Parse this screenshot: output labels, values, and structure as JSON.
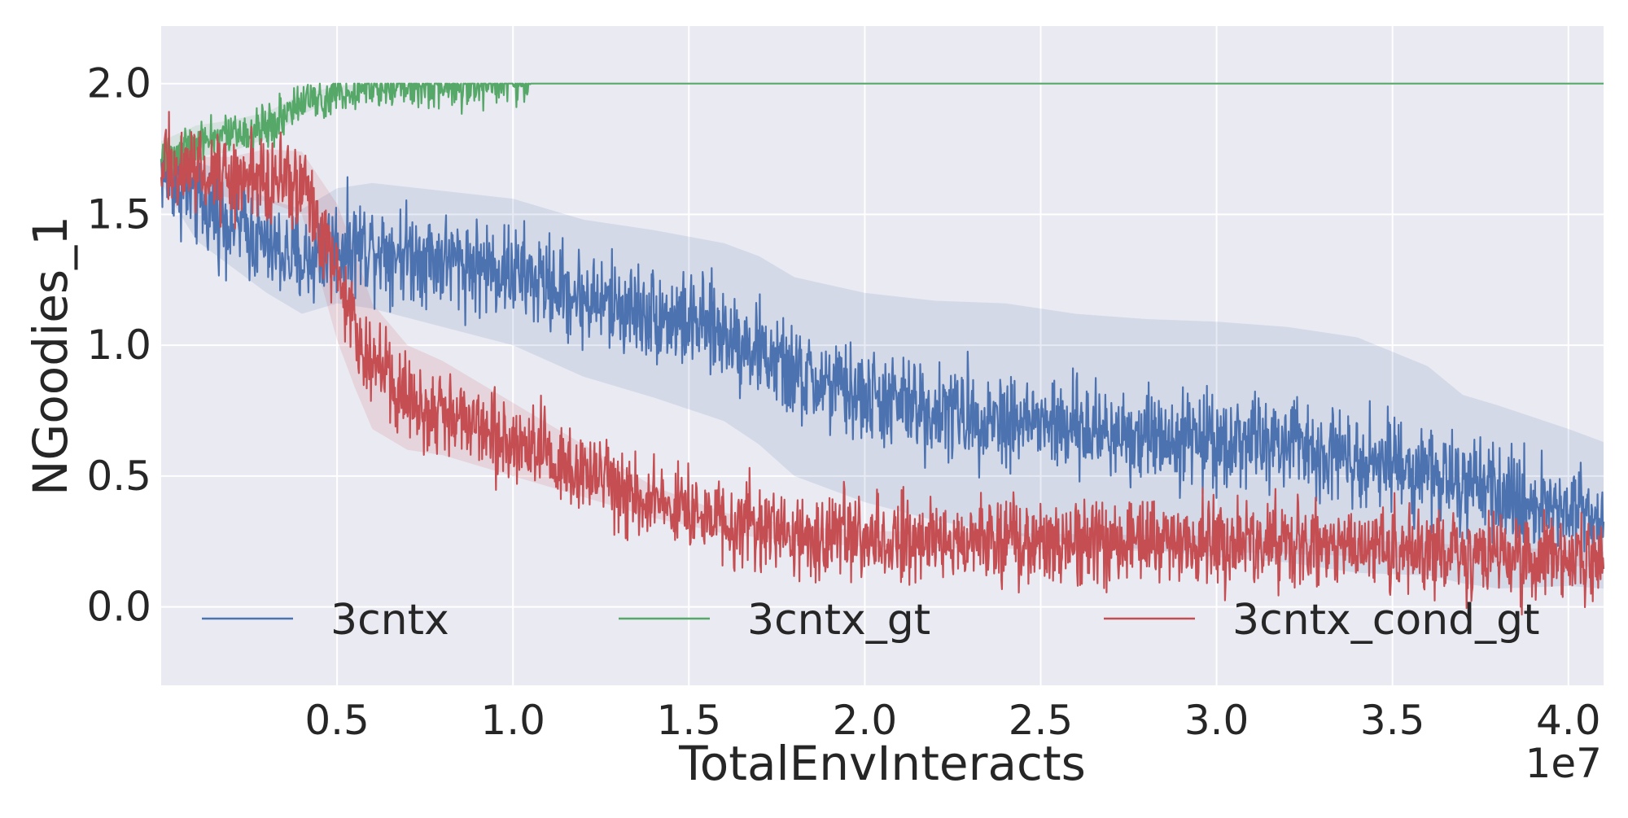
{
  "chart_data": {
    "type": "line",
    "xlabel": "TotalEnvInteracts",
    "ylabel": "NGoodies_1",
    "x_offset_label": "1e7",
    "xlim": [
      0.0,
      4.1
    ],
    "ylim": [
      -0.3,
      2.22
    ],
    "x_scale_factor": 10000000,
    "grid": true,
    "legend_placement": "lower-center",
    "legend_layout": "horizontal",
    "x_ticks": [
      {
        "value": 0.5,
        "label": "0.5"
      },
      {
        "value": 1.0,
        "label": "1.0"
      },
      {
        "value": 1.5,
        "label": "1.5"
      },
      {
        "value": 2.0,
        "label": "2.0"
      },
      {
        "value": 2.5,
        "label": "2.5"
      },
      {
        "value": 3.0,
        "label": "3.0"
      },
      {
        "value": 3.5,
        "label": "3.5"
      },
      {
        "value": 4.0,
        "label": "4.0"
      }
    ],
    "y_ticks": [
      {
        "value": 0.0,
        "label": "0.0"
      },
      {
        "value": 0.5,
        "label": "0.5"
      },
      {
        "value": 1.0,
        "label": "1.0"
      },
      {
        "value": 1.5,
        "label": "1.5"
      },
      {
        "value": 2.0,
        "label": "2.0"
      }
    ],
    "series": [
      {
        "name": "3cntx",
        "color": "#4c72b0",
        "x": [
          0.0,
          0.1,
          0.2,
          0.3,
          0.4,
          0.5,
          0.6,
          0.8,
          1.0,
          1.2,
          1.4,
          1.6,
          1.7,
          1.8,
          2.0,
          2.2,
          2.4,
          2.6,
          2.8,
          3.0,
          3.2,
          3.4,
          3.6,
          3.7,
          3.8,
          4.0,
          4.1
        ],
        "y": [
          1.68,
          1.55,
          1.48,
          1.38,
          1.32,
          1.38,
          1.38,
          1.33,
          1.28,
          1.18,
          1.12,
          1.05,
          0.98,
          0.88,
          0.8,
          0.75,
          0.72,
          0.68,
          0.66,
          0.64,
          0.62,
          0.58,
          0.52,
          0.45,
          0.42,
          0.38,
          0.35
        ],
        "band": [
          0.06,
          0.15,
          0.18,
          0.18,
          0.2,
          0.22,
          0.24,
          0.26,
          0.28,
          0.3,
          0.32,
          0.34,
          0.36,
          0.38,
          0.4,
          0.42,
          0.44,
          0.44,
          0.44,
          0.45,
          0.45,
          0.45,
          0.4,
          0.36,
          0.35,
          0.3,
          0.28
        ],
        "noise": 0.09
      },
      {
        "name": "3cntx_gt",
        "color": "#55a868",
        "x": [
          0.0,
          0.1,
          0.2,
          0.3,
          0.4,
          0.5,
          0.6,
          0.7,
          0.85,
          1.05,
          1.2,
          2.0,
          3.0,
          4.1
        ],
        "y": [
          1.72,
          1.78,
          1.8,
          1.84,
          1.92,
          1.97,
          1.99,
          1.995,
          1.998,
          2.0,
          2.0,
          2.0,
          2.0,
          2.0
        ],
        "band": [
          0.06,
          0.06,
          0.06,
          0.05,
          0.04,
          0.02,
          0.01,
          0.005,
          0.003,
          0.0,
          0.0,
          0.0,
          0.0,
          0.0
        ],
        "noise": 0.04,
        "noise_stop_x": 1.05
      },
      {
        "name": "3cntx_cond_gt",
        "color": "#c44e52",
        "x": [
          0.0,
          0.1,
          0.2,
          0.3,
          0.4,
          0.5,
          0.55,
          0.6,
          0.7,
          0.8,
          0.9,
          1.0,
          1.1,
          1.2,
          1.3,
          1.4,
          1.5,
          1.6,
          1.8,
          2.0,
          2.5,
          3.0,
          3.5,
          4.1
        ],
        "y": [
          1.7,
          1.66,
          1.64,
          1.65,
          1.62,
          1.28,
          1.1,
          0.92,
          0.8,
          0.76,
          0.7,
          0.64,
          0.58,
          0.52,
          0.46,
          0.4,
          0.36,
          0.32,
          0.28,
          0.26,
          0.25,
          0.24,
          0.22,
          0.18
        ],
        "band": [
          0.05,
          0.06,
          0.08,
          0.1,
          0.12,
          0.26,
          0.26,
          0.24,
          0.2,
          0.18,
          0.16,
          0.14,
          0.12,
          0.1,
          0.08,
          0.06,
          0.05,
          0.04,
          0.03,
          0.03,
          0.03,
          0.03,
          0.03,
          0.03
        ],
        "noise": 0.08
      }
    ]
  }
}
